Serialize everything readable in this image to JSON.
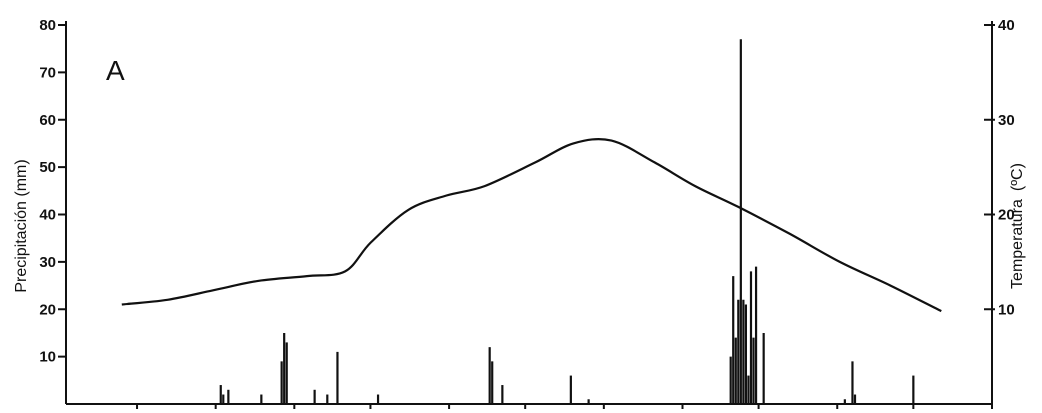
{
  "chart_data": {
    "type": "bar+line",
    "panel_label": "A",
    "ylabel_left": "Precipitación (mm)",
    "ylabel_right": "Temperatura",
    "ylabel_right_unit": "(ºC)",
    "ylim_left": [
      0,
      80
    ],
    "ylim_right": [
      0,
      40
    ],
    "left_ticks": [
      "10",
      "20",
      "30",
      "40",
      "50",
      "60",
      "70",
      "80"
    ],
    "left_tick_values": [
      10,
      20,
      30,
      40,
      50,
      60,
      70,
      80
    ],
    "right_ticks": [
      "10",
      "20",
      "30",
      "40"
    ],
    "right_tick_values": [
      10,
      20,
      30,
      40
    ],
    "xlim": [
      0,
      365
    ],
    "x_tick_values": [
      28,
      59,
      90,
      120,
      151,
      181,
      212,
      243,
      273,
      304,
      334,
      365
    ],
    "precipitation": {
      "x": [
        61,
        62,
        64,
        77,
        85,
        86,
        87,
        98,
        103,
        107,
        123,
        167,
        168,
        172,
        199,
        206,
        262,
        263,
        264,
        265,
        266,
        267,
        268,
        269,
        270,
        271,
        272,
        275,
        307,
        310,
        311,
        334
      ],
      "values": [
        4,
        2,
        3,
        2,
        9,
        15,
        13,
        3,
        2,
        11,
        2,
        12,
        9,
        4,
        6,
        1,
        10,
        27,
        14,
        22,
        77,
        22,
        21,
        6,
        28,
        14,
        29,
        15,
        1,
        9,
        2,
        6
      ]
    },
    "temperature": {
      "x": [
        22,
        40,
        58,
        76,
        95,
        110,
        120,
        135,
        150,
        165,
        185,
        200,
        215,
        232,
        248,
        265,
        285,
        305,
        325,
        345
      ],
      "values": [
        10.5,
        11,
        12,
        13,
        13.5,
        14,
        17,
        20.5,
        22,
        23,
        25.5,
        27.5,
        27.8,
        25.5,
        23,
        20.8,
        18,
        15,
        12.5,
        9.8
      ]
    }
  }
}
